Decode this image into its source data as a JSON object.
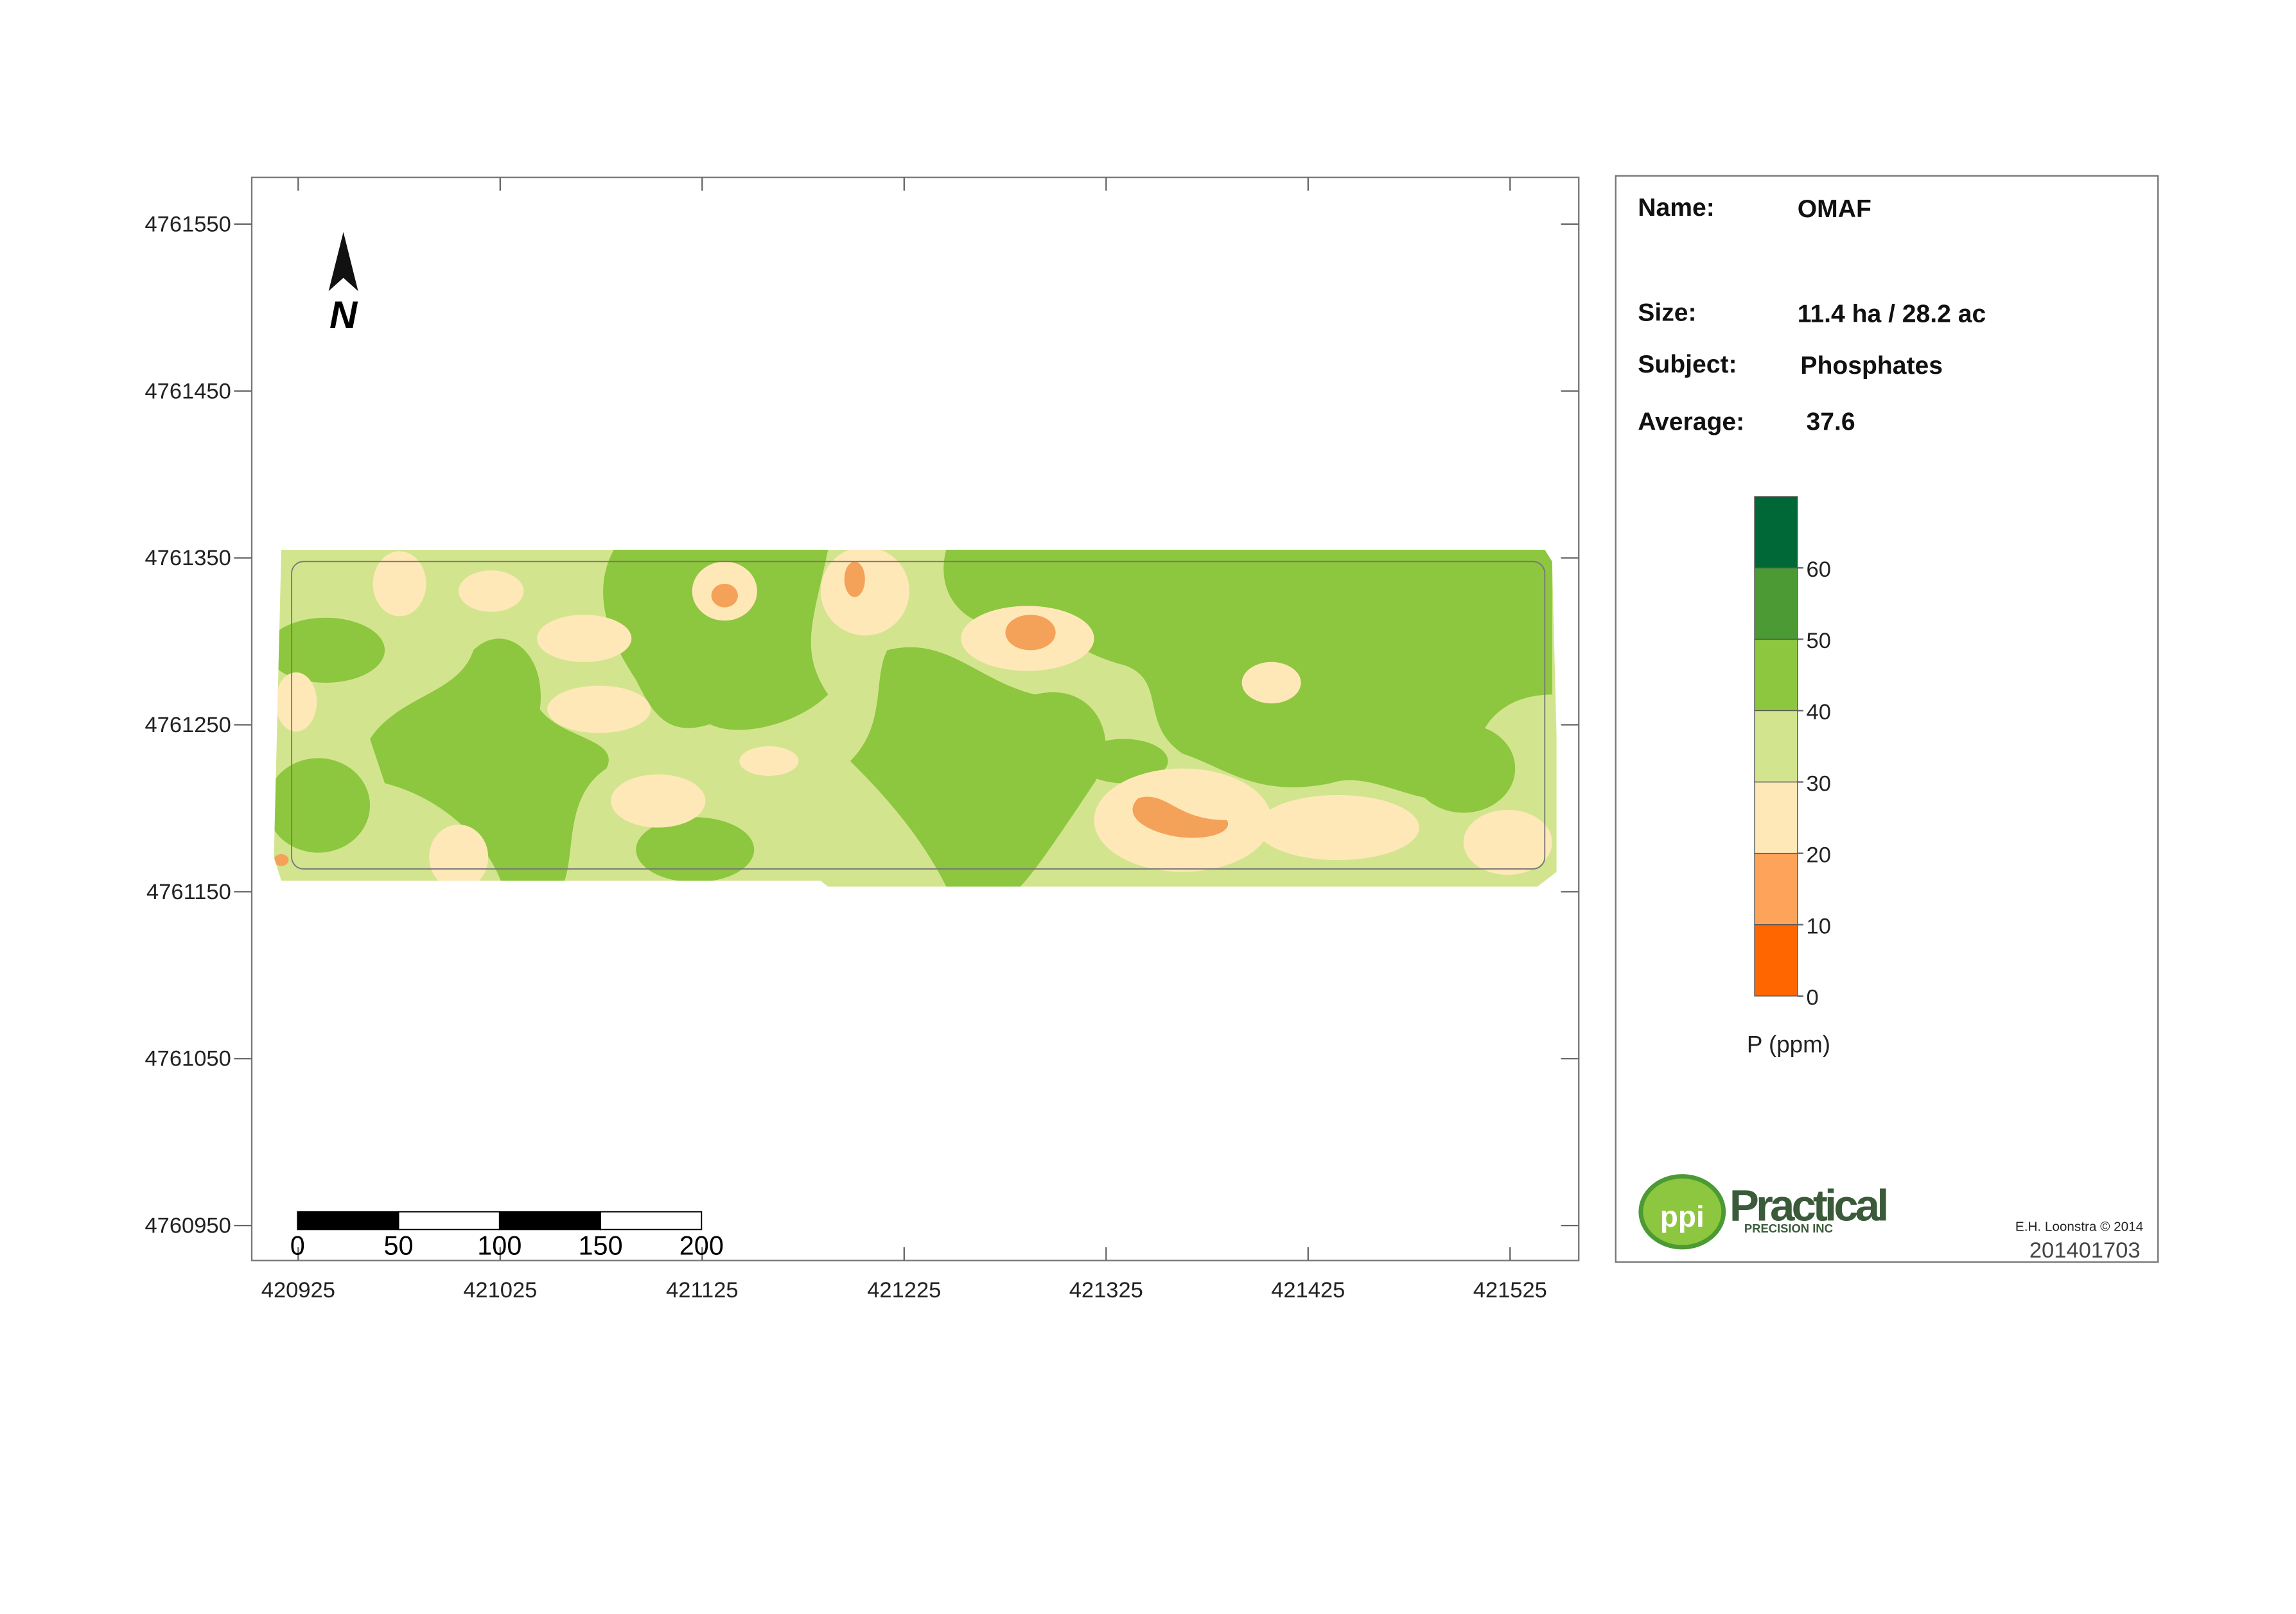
{
  "map": {
    "xlim": [
      420902,
      421559
    ],
    "ylim": [
      4760929,
      4761578
    ],
    "xticks": [
      420925,
      421025,
      421125,
      421225,
      421325,
      421425,
      421525
    ],
    "yticks": [
      4760950,
      4761050,
      4761150,
      4761250,
      4761350,
      4761450,
      4761550
    ],
    "north": "N",
    "scale_bar": [
      0,
      50,
      100,
      150,
      200
    ]
  },
  "panel": {
    "name_label": "Name:",
    "name": "OMAF",
    "size_label": "Size:",
    "size": "11.4 ha / 28.2 ac",
    "subject_label": "Subject:",
    "subject": "Phosphates",
    "average_label": "Average:",
    "average": 37.6
  },
  "legend": {
    "title": "P (ppm)",
    "lim": [
      0,
      70
    ],
    "ticks": [
      0,
      10,
      20,
      30,
      40,
      50,
      60
    ],
    "bins": [
      0,
      10,
      20,
      30,
      40,
      50,
      60,
      70
    ],
    "colors": [
      "#ff6600",
      "#fda45a",
      "#ffe8b8",
      "#d2e58e",
      "#8dc63f",
      "#4b9a34",
      "#006837"
    ]
  },
  "logo": {
    "mark": "ppi",
    "name": "Practical",
    "sub": "PRECISION INC"
  },
  "copyright": "E.H. Loonstra © 2014",
  "id": "201401703"
}
